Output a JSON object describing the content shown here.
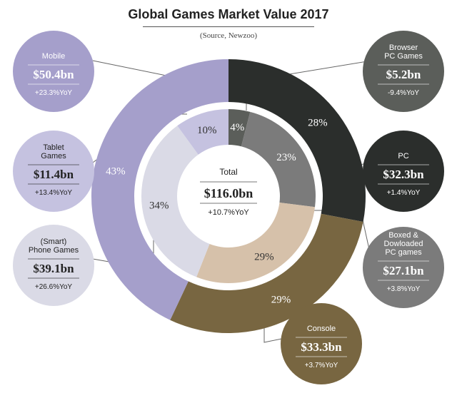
{
  "chart_data": {
    "type": "donut",
    "title": "Global Games Market Value 2017",
    "subtitle": "(Source, Newzoo)",
    "total": {
      "label": "Total",
      "value": "$116.0bn",
      "yoy": "+10.7%YoY"
    },
    "outer_ring": [
      {
        "key": "pc",
        "pct": 28,
        "label": "28%"
      },
      {
        "key": "console",
        "pct": 29,
        "label": "29%"
      },
      {
        "key": "mobile",
        "pct": 43,
        "label": "43%"
      }
    ],
    "inner_ring": [
      {
        "key": "browser",
        "pct": 4,
        "label": "4%"
      },
      {
        "key": "boxed",
        "pct": 23,
        "label": "23%"
      },
      {
        "key": "console",
        "pct": 29,
        "label": "29%"
      },
      {
        "key": "phone",
        "pct": 34,
        "label": "34%"
      },
      {
        "key": "tablet",
        "pct": 10,
        "label": "10%"
      }
    ],
    "segments": {
      "mobile": {
        "lines": [
          "Mobile"
        ],
        "value": "$50.4bn",
        "yoy": "+23.3%YoY",
        "color": "#a59fcb"
      },
      "tablet": {
        "lines": [
          "Tablet",
          "Games"
        ],
        "value": "$11.4bn",
        "yoy": "+13.4%YoY",
        "color": "#c5c2e0"
      },
      "phone": {
        "lines": [
          "(Smart)",
          "Phone Games"
        ],
        "value": "$39.1bn",
        "yoy": "+26.6%YoY",
        "color": "#dadae6"
      },
      "browser": {
        "lines": [
          "Browser",
          "PC Games"
        ],
        "value": "$5.2bn",
        "yoy": "-9.4%YoY",
        "color": "#5b5e5a"
      },
      "pc": {
        "lines": [
          "PC"
        ],
        "value": "$32.3bn",
        "yoy": "+1.4%YoY",
        "color": "#2b2e2c"
      },
      "boxed": {
        "lines": [
          "Boxed &",
          "Dowloaded",
          "PC games"
        ],
        "value": "$27.1bn",
        "yoy": "+3.8%YoY",
        "color": "#7b7b7b"
      },
      "console": {
        "lines": [
          "Console"
        ],
        "value": "$33.3bn",
        "yoy": "+3.7%YoY",
        "color": "#786641"
      },
      "console_inner": {
        "color": "#d6c1aa"
      }
    }
  }
}
